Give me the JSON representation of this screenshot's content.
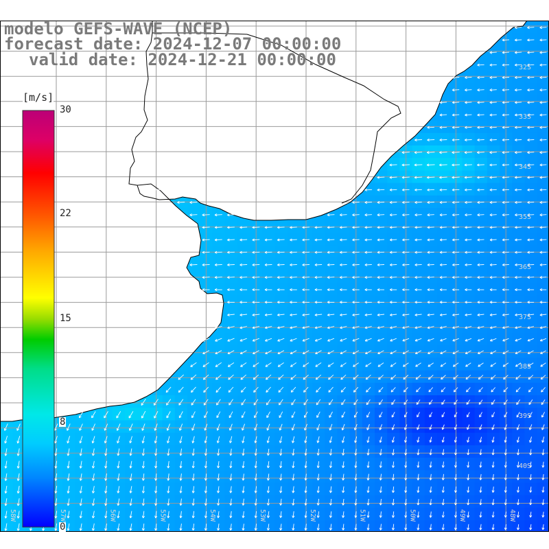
{
  "title": {
    "line1": "modelo GEFS-WAVE (NCEP)",
    "line2": "forecast date: 2024-12-07 00:00:00",
    "line3": "valid date: 2024-12-21 00:00:00"
  },
  "colorbar": {
    "unit": "[m/s]",
    "ticks": [
      "30",
      "22",
      "15",
      "8",
      "0"
    ],
    "tick_values": [
      30,
      22,
      15,
      8,
      0
    ],
    "min": 0,
    "max": 30,
    "colors": [
      "#0000ff",
      "#0088ff",
      "#00ccff",
      "#00e8e8",
      "#00dd88",
      "#00cc00",
      "#99dd00",
      "#ffff00",
      "#ffaa00",
      "#ff5500",
      "#ff0000",
      "#dd0066",
      "#bb0077"
    ]
  },
  "map": {
    "lat_labels": [
      "32S",
      "33S",
      "34S",
      "35S",
      "36S",
      "37S",
      "38S",
      "39S",
      "40S"
    ],
    "lon_labels": [
      "58W",
      "57W",
      "56W",
      "55W",
      "54W",
      "53W",
      "52W",
      "51W",
      "50W",
      "49W",
      "48W"
    ],
    "land_color": "#ffffff",
    "grid_color": "#9a9a9a",
    "arrow_color": "#ffffff",
    "coast_color": "#000000"
  },
  "icons": [
    "wind-arrow-icon"
  ]
}
